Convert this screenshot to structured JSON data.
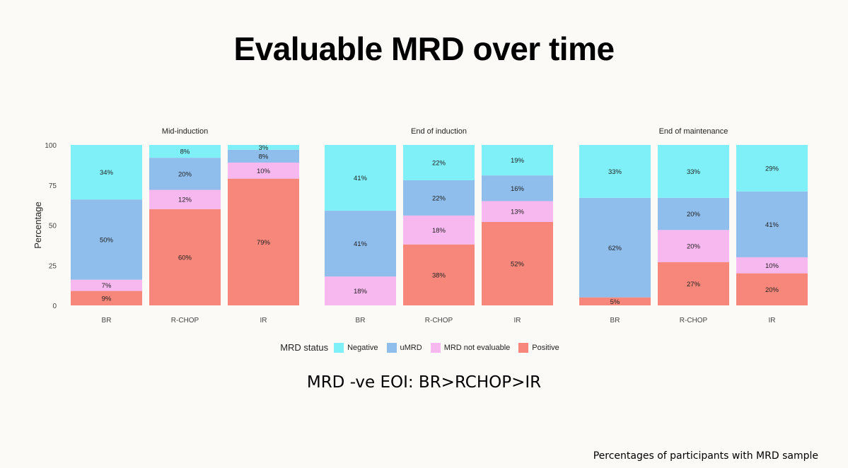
{
  "title": "Evaluable MRD over time",
  "subtitle": "MRD -ve EOI: BR>RCHOP>IR",
  "footnote": "Percentages of participants with MRD sample",
  "legend": {
    "title": "MRD status",
    "items": [
      {
        "label": "Negative",
        "color": "#7ff0f7"
      },
      {
        "label": "uMRD",
        "color": "#8fbdec"
      },
      {
        "label": "MRD not evaluable",
        "color": "#f7b8ef"
      },
      {
        "label": "Positive",
        "color": "#f6877a"
      }
    ]
  },
  "chart_data": {
    "type": "bar",
    "stacked": true,
    "ylabel": "Percentage",
    "ylim": [
      0,
      100
    ],
    "yticks": [
      "0",
      "25",
      "50",
      "75",
      "100"
    ],
    "legend_position": "bottom",
    "stack_order": [
      "Positive",
      "MRD not evaluable",
      "uMRD",
      "Negative"
    ],
    "panels": [
      {
        "title": "Mid-induction",
        "categories": [
          "BR",
          "R-CHOP",
          "IR"
        ],
        "series": [
          {
            "name": "Positive",
            "values": [
              9,
              60,
              79
            ],
            "labels": [
              "9%",
              "60%",
              "79%"
            ]
          },
          {
            "name": "MRD not evaluable",
            "values": [
              7,
              12,
              10
            ],
            "labels": [
              "7%",
              "12%",
              "10%"
            ]
          },
          {
            "name": "uMRD",
            "values": [
              50,
              20,
              8
            ],
            "labels": [
              "50%",
              "20%",
              "8%"
            ]
          },
          {
            "name": "Negative",
            "values": [
              34,
              8,
              3
            ],
            "labels": [
              "34%",
              "8%",
              "3%"
            ]
          }
        ]
      },
      {
        "title": "End of induction",
        "categories": [
          "BR",
          "R-CHOP",
          "IR"
        ],
        "series": [
          {
            "name": "Positive",
            "values": [
              0,
              38,
              52
            ],
            "labels": [
              "",
              "38%",
              "52%"
            ]
          },
          {
            "name": "MRD not evaluable",
            "values": [
              18,
              18,
              13
            ],
            "labels": [
              "18%",
              "18%",
              "13%"
            ]
          },
          {
            "name": "uMRD",
            "values": [
              41,
              22,
              16
            ],
            "labels": [
              "41%",
              "22%",
              "16%"
            ]
          },
          {
            "name": "Negative",
            "values": [
              41,
              22,
              19
            ],
            "labels": [
              "41%",
              "22%",
              "19%"
            ]
          }
        ]
      },
      {
        "title": "End of maintenance",
        "categories": [
          "BR",
          "R-CHOP",
          "IR"
        ],
        "series": [
          {
            "name": "Positive",
            "values": [
              5,
              27,
              20
            ],
            "labels": [
              "5%",
              "27%",
              "20%"
            ]
          },
          {
            "name": "MRD not evaluable",
            "values": [
              0,
              20,
              10
            ],
            "labels": [
              "",
              "20%",
              "10%"
            ]
          },
          {
            "name": "uMRD",
            "values": [
              62,
              20,
              41
            ],
            "labels": [
              "62%",
              "20%",
              "41%"
            ]
          },
          {
            "name": "Negative",
            "values": [
              33,
              33,
              29
            ],
            "labels": [
              "33%",
              "33%",
              "29%"
            ]
          }
        ]
      }
    ]
  }
}
